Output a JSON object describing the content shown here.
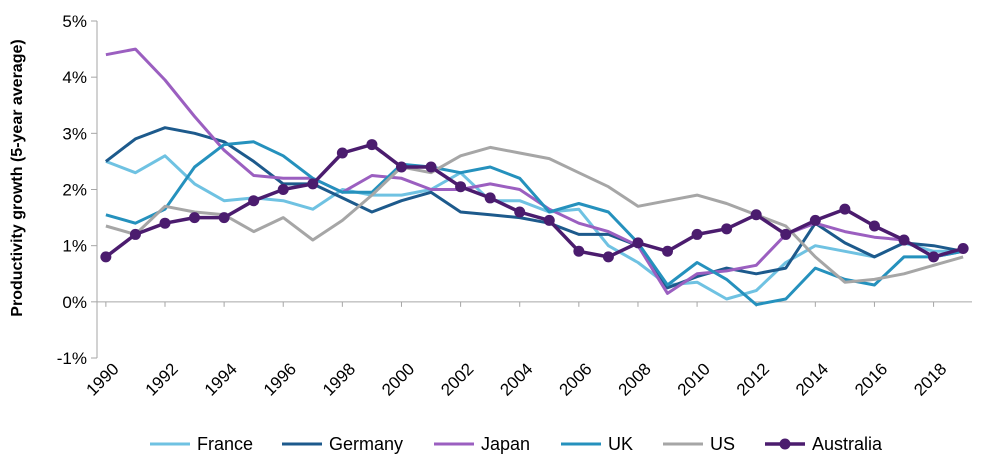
{
  "chart_data": {
    "type": "line",
    "ylabel": "Productivity growth (5-year average)",
    "xlabel": "",
    "ylim": [
      -1,
      5
    ],
    "xlim": [
      1990,
      2019
    ],
    "yticks": [
      -1,
      0,
      1,
      2,
      3,
      4,
      5
    ],
    "ytick_labels": [
      "-1%",
      "0%",
      "1%",
      "2%",
      "3%",
      "4%",
      "5%"
    ],
    "xticks": [
      1990,
      1992,
      1994,
      1996,
      1998,
      2000,
      2002,
      2004,
      2006,
      2008,
      2010,
      2012,
      2014,
      2016,
      2018
    ],
    "xtick_labels": [
      "1990",
      "1992",
      "1994",
      "1996",
      "1998",
      "2000",
      "2002",
      "2004",
      "2006",
      "2008",
      "2010",
      "2012",
      "2014",
      "2016",
      "2018"
    ],
    "legend_position": "bottom",
    "grid": false,
    "x": [
      1990,
      1991,
      1992,
      1993,
      1994,
      1995,
      1996,
      1997,
      1998,
      1999,
      2000,
      2001,
      2002,
      2003,
      2004,
      2005,
      2006,
      2007,
      2008,
      2009,
      2010,
      2011,
      2012,
      2013,
      2014,
      2015,
      2016,
      2017,
      2018,
      2019
    ],
    "series": [
      {
        "name": "France",
        "color": "#6fc2e2",
        "markers": false,
        "values": [
          2.5,
          2.3,
          2.6,
          2.1,
          1.8,
          1.85,
          1.8,
          1.65,
          2.0,
          1.9,
          1.9,
          2.0,
          2.3,
          1.8,
          1.8,
          1.6,
          1.65,
          1.0,
          0.7,
          0.3,
          0.35,
          0.05,
          0.2,
          0.7,
          1.0,
          0.9,
          0.8,
          1.05,
          0.9,
          0.9
        ]
      },
      {
        "name": "Germany",
        "color": "#1d5a8c",
        "markers": false,
        "values": [
          2.5,
          2.9,
          3.1,
          3.0,
          2.85,
          2.5,
          2.1,
          2.1,
          1.85,
          1.6,
          1.8,
          1.95,
          1.6,
          1.55,
          1.5,
          1.4,
          1.2,
          1.2,
          1.0,
          0.25,
          0.45,
          0.6,
          0.5,
          0.6,
          1.4,
          1.05,
          0.8,
          1.05,
          1.0,
          0.9
        ]
      },
      {
        "name": "Japan",
        "color": "#9b5fc0",
        "markers": false,
        "values": [
          4.4,
          4.5,
          3.95,
          3.3,
          2.7,
          2.25,
          2.2,
          2.2,
          1.95,
          2.25,
          2.2,
          2.0,
          2.0,
          2.1,
          2.0,
          1.65,
          1.4,
          1.25,
          1.0,
          0.15,
          0.5,
          0.55,
          0.65,
          1.2,
          1.4,
          1.25,
          1.15,
          1.1,
          0.8,
          0.9
        ]
      },
      {
        "name": "UK",
        "color": "#2591bd",
        "markers": false,
        "values": [
          1.55,
          1.4,
          1.65,
          2.4,
          2.8,
          2.85,
          2.6,
          2.2,
          1.95,
          1.95,
          2.45,
          2.4,
          2.3,
          2.4,
          2.2,
          1.6,
          1.75,
          1.6,
          1.05,
          0.3,
          0.7,
          0.4,
          -0.05,
          0.05,
          0.6,
          0.4,
          0.3,
          0.8,
          0.8,
          0.9
        ]
      },
      {
        "name": "US",
        "color": "#a6a6a6",
        "markers": false,
        "values": [
          1.35,
          1.2,
          1.7,
          1.6,
          1.55,
          1.25,
          1.5,
          1.1,
          1.45,
          1.9,
          2.4,
          2.3,
          2.6,
          2.75,
          2.65,
          2.55,
          2.3,
          2.05,
          1.7,
          1.8,
          1.9,
          1.75,
          1.55,
          1.35,
          0.8,
          0.35,
          0.4,
          0.5,
          0.65,
          0.8
        ]
      },
      {
        "name": "Australia",
        "color": "#4b1c6e",
        "markers": true,
        "values": [
          0.8,
          1.2,
          1.4,
          1.5,
          1.5,
          1.8,
          2.0,
          2.1,
          2.65,
          2.8,
          2.4,
          2.4,
          2.05,
          1.85,
          1.6,
          1.45,
          0.9,
          0.8,
          1.05,
          0.9,
          1.2,
          1.3,
          1.55,
          1.2,
          1.45,
          1.65,
          1.35,
          1.1,
          0.8,
          0.95
        ]
      }
    ]
  }
}
